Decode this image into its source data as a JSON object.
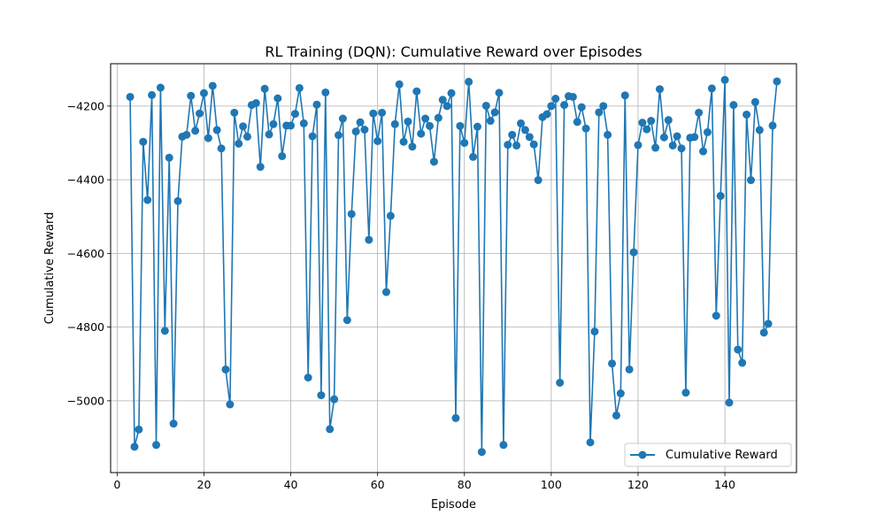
{
  "chart_data": {
    "type": "line",
    "title": "RL Training (DQN): Cumulative Reward over Episodes",
    "xlabel": "Episode",
    "ylabel": "Cumulative Reward",
    "xlim": [
      -1.5,
      156.5
    ],
    "ylim": [
      -5195,
      -4085
    ],
    "xticks": [
      0,
      20,
      40,
      60,
      80,
      100,
      120,
      140
    ],
    "yticks": [
      -5000,
      -4800,
      -4600,
      -4400,
      -4200
    ],
    "ytick_labels": [
      "−5000",
      "−4800",
      "−4600",
      "−4400",
      "−4200"
    ],
    "grid": true,
    "legend": {
      "placement": "lower-right"
    },
    "series": [
      {
        "name": "Cumulative Reward",
        "color": "#1f77b4",
        "marker": "circle",
        "x": [
          3,
          4,
          5,
          6,
          7,
          8,
          9,
          10,
          11,
          12,
          13,
          14,
          15,
          16,
          17,
          18,
          19,
          20,
          21,
          22,
          23,
          24,
          25,
          26,
          27,
          28,
          29,
          30,
          31,
          32,
          33,
          34,
          35,
          36,
          37,
          38,
          39,
          40,
          41,
          42,
          43,
          44,
          45,
          46,
          47,
          48,
          49,
          50,
          51,
          52,
          53,
          54,
          55,
          56,
          57,
          58,
          59,
          60,
          61,
          62,
          63,
          64,
          65,
          66,
          67,
          68,
          69,
          70,
          71,
          72,
          73,
          74,
          75,
          76,
          77,
          78,
          79,
          80,
          81,
          82,
          83,
          84,
          85,
          86,
          87,
          88,
          89,
          90,
          91,
          92,
          93,
          94,
          95,
          96,
          97,
          98,
          99,
          100,
          101,
          102,
          103,
          104,
          105,
          106,
          107,
          108,
          109,
          110,
          111,
          112,
          113,
          114,
          115,
          116,
          117,
          118,
          119,
          120,
          121,
          122,
          123,
          124,
          125,
          126,
          127,
          128,
          129,
          130,
          131,
          132,
          133,
          134,
          135,
          136,
          137,
          138,
          139,
          140,
          141,
          142,
          143,
          144,
          145,
          146,
          147,
          148,
          149,
          150,
          151,
          152
        ],
        "y": [
          -4175,
          -5125,
          -5078,
          -4297,
          -4455,
          -4170,
          -5120,
          -4150,
          -4810,
          -4340,
          -5062,
          -4458,
          -4283,
          -4278,
          -4172,
          -4267,
          -4220,
          -4165,
          -4287,
          -4145,
          -4265,
          -4315,
          -4915,
          -5010,
          -4218,
          -4302,
          -4255,
          -4283,
          -4197,
          -4192,
          -4365,
          -4153,
          -4277,
          -4249,
          -4179,
          -4336,
          -4253,
          -4253,
          -4221,
          -4151,
          -4247,
          -4937,
          -4282,
          -4196,
          -4985,
          -4163,
          -5077,
          -4996,
          -4279,
          -4234,
          -4781,
          -4493,
          -4269,
          -4244,
          -4264,
          -4563,
          -4220,
          -4295,
          -4218,
          -4705,
          -4498,
          -4249,
          -4141,
          -4297,
          -4242,
          -4310,
          -4160,
          -4275,
          -4234,
          -4254,
          -4351,
          -4232,
          -4183,
          -4200,
          -4165,
          -5047,
          -4254,
          -4300,
          -4134,
          -4338,
          -4256,
          -5139,
          -4199,
          -4240,
          -4217,
          -4164,
          -5120,
          -4305,
          -4278,
          -4307,
          -4247,
          -4265,
          -4284,
          -4304,
          -4401,
          -4230,
          -4222,
          -4200,
          -4180,
          -4951,
          -4197,
          -4173,
          -4175,
          -4243,
          -4203,
          -4261,
          -5113,
          -4812,
          -4217,
          -4200,
          -4278,
          -4899,
          -5040,
          -4980,
          -4171,
          -4915,
          -4597,
          -4306,
          -4245,
          -4263,
          -4240,
          -4313,
          -4154,
          -4285,
          -4238,
          -4307,
          -4282,
          -4315,
          -4978,
          -4286,
          -4284,
          -4218,
          -4323,
          -4271,
          -4152,
          -4769,
          -4444,
          -4129,
          -5005,
          -4197,
          -4861,
          -4897,
          -4223,
          -4401,
          -4189,
          -4265,
          -4815,
          -4791,
          -4253,
          -4133
        ]
      }
    ]
  }
}
